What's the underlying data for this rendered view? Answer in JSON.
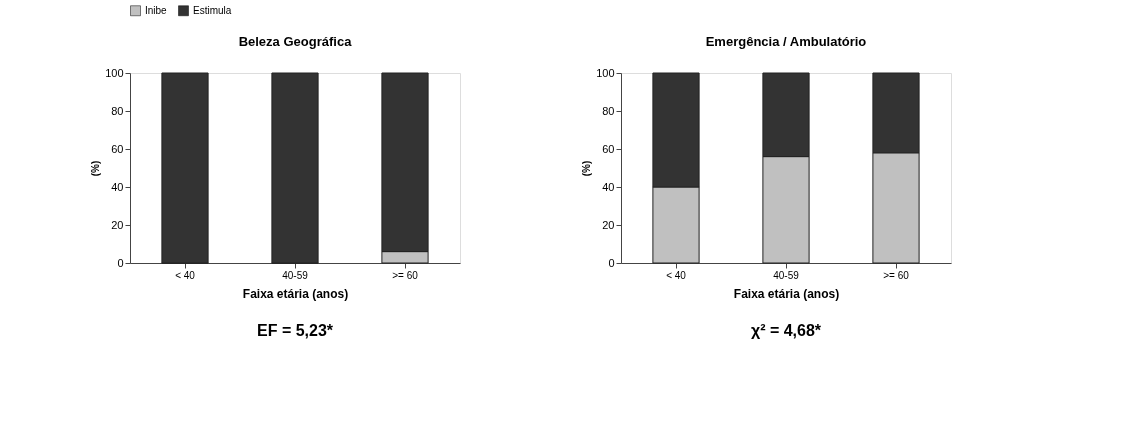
{
  "chart_data": [
    {
      "type": "bar",
      "title": "Beleza Geográfica",
      "xlabel": "Faixa etária (anos)",
      "ylabel": "(%)",
      "categories": [
        "< 40",
        "40-59",
        ">= 60"
      ],
      "stacked": true,
      "ylim": [
        0,
        100
      ],
      "yticks": [
        0,
        20,
        40,
        60,
        80,
        100
      ],
      "grid": false,
      "legend": "top",
      "annotations": [
        "EF = 5,23*"
      ],
      "series": [
        {
          "name": "Inibe",
          "color": "#c0c0c0",
          "values": [
            0,
            0,
            6
          ]
        },
        {
          "name": "Estimula",
          "color": "#333333",
          "values": [
            100,
            100,
            94
          ]
        }
      ]
    },
    {
      "type": "bar",
      "title": "Emergência / Ambulatório",
      "xlabel": "Faixa etária (anos)",
      "ylabel": "(%)",
      "categories": [
        "< 40",
        "40-59",
        ">= 60"
      ],
      "stacked": true,
      "ylim": [
        0,
        100
      ],
      "yticks": [
        0,
        20,
        40,
        60,
        80,
        100
      ],
      "grid": false,
      "legend": "top",
      "annotations": [
        "χ² = 4,68*"
      ],
      "series": [
        {
          "name": "Inibe",
          "color": "#c0c0c0",
          "values": [
            40,
            56,
            58
          ]
        },
        {
          "name": "Estimula",
          "color": "#333333",
          "values": [
            60,
            44,
            42
          ]
        }
      ]
    }
  ]
}
